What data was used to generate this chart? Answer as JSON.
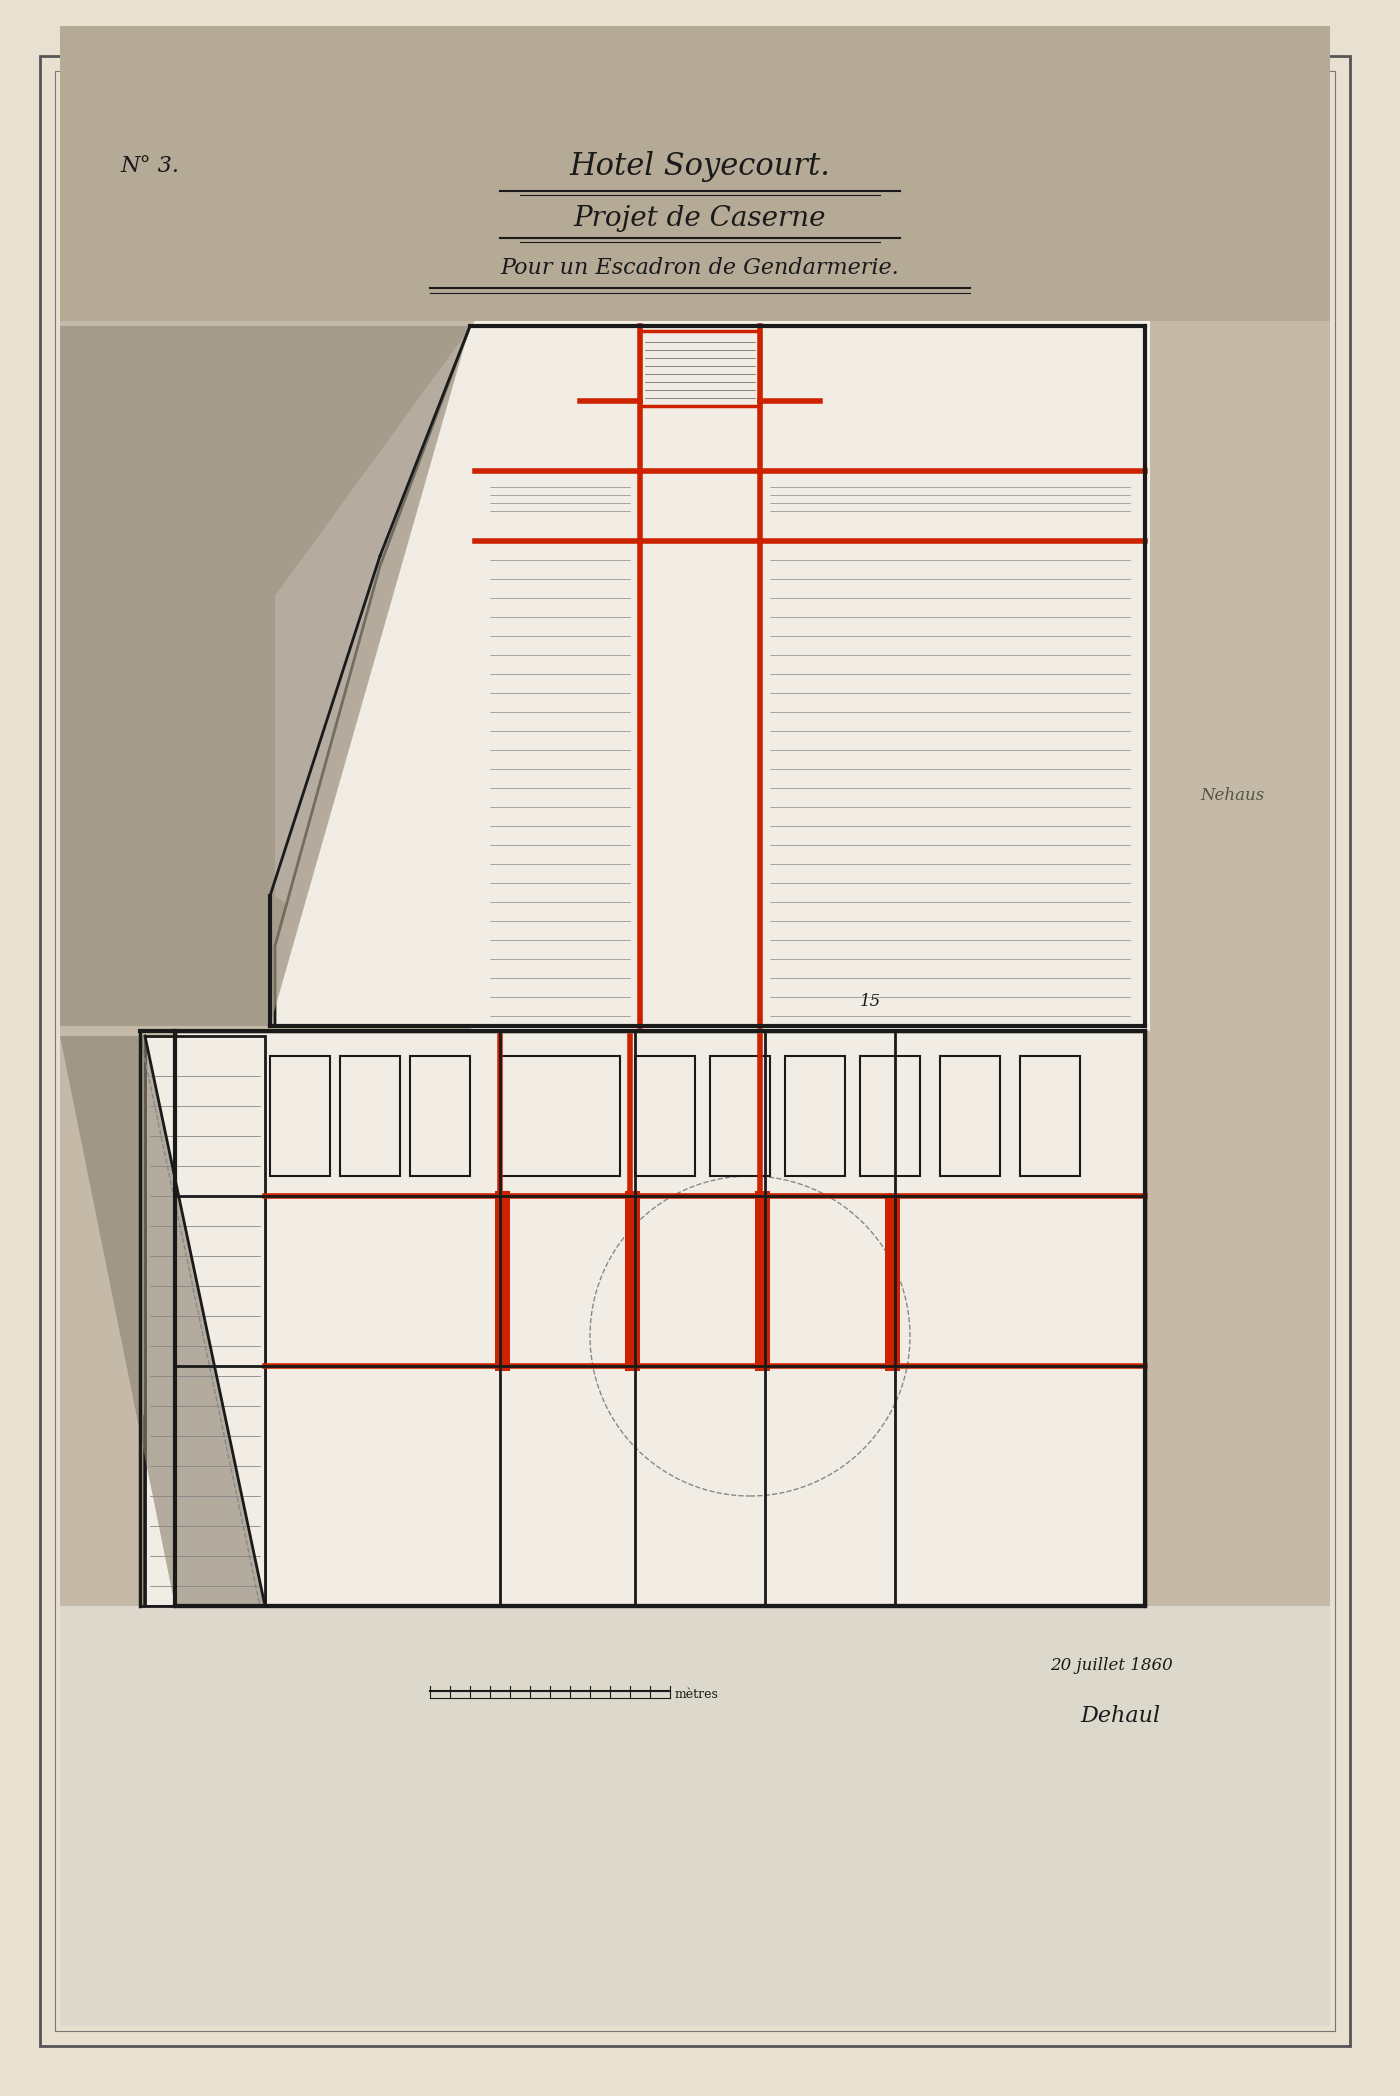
{
  "bg_outer": "#e8e0d0",
  "bg_paper": "#c8bfa8",
  "bg_plan_upper": "#f5f0e8",
  "bg_plan_lower": "#f5f0e8",
  "wall_color": "#1a1a1a",
  "red_color": "#cc2200",
  "brown_color": "#8b5e3c",
  "gray_fill": "#a09080",
  "title_line1": "Hotel Soyecourt.",
  "title_line2": "Projet de Caserne",
  "title_line3": "Pour un Escadron de Gendarmerie.",
  "number_label": "N° 3.",
  "date_text": "20 juillet 1860",
  "scale_label": "mètres",
  "signature": "Dehaul"
}
